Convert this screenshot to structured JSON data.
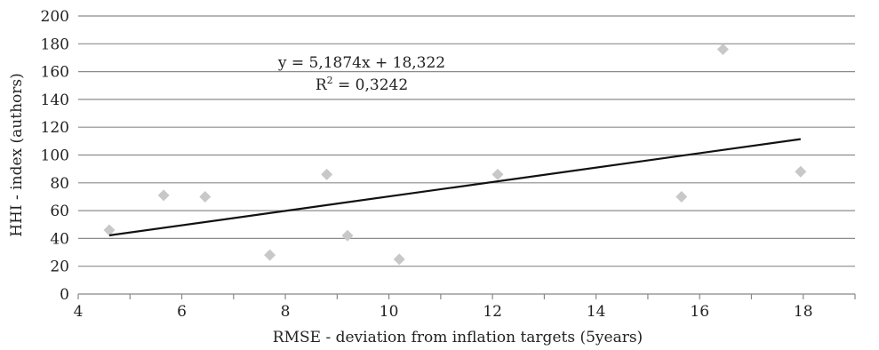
{
  "chart_data": {
    "type": "scatter",
    "title": "",
    "xlabel": "RMSE - deviation from inflation targets (5years)",
    "ylabel": "HHI - index (authors)",
    "xlim": [
      4,
      19
    ],
    "ylim": [
      0,
      200
    ],
    "xticks": [
      4,
      6,
      8,
      10,
      12,
      14,
      16,
      18
    ],
    "yticks": [
      0,
      20,
      40,
      60,
      80,
      100,
      120,
      140,
      160,
      180,
      200
    ],
    "grid": "horizontal",
    "legend": "none",
    "marker_color": "#c8c8c8",
    "trend_color": "#111111",
    "series": [
      {
        "x": [
          4.6,
          5.65,
          6.45,
          7.7,
          8.8,
          9.2,
          10.2,
          12.1,
          15.65,
          16.45,
          17.95
        ],
        "y": [
          46,
          71,
          70,
          28,
          86,
          42,
          25,
          86,
          70,
          176,
          88
        ]
      }
    ],
    "trendline": {
      "x_range": [
        4.6,
        17.95
      ],
      "equation": "y = 5,1874x + 18,322",
      "r_squared_prefix": "R",
      "r_squared_sup": "2",
      "r_squared_value": " = 0,3242"
    }
  }
}
